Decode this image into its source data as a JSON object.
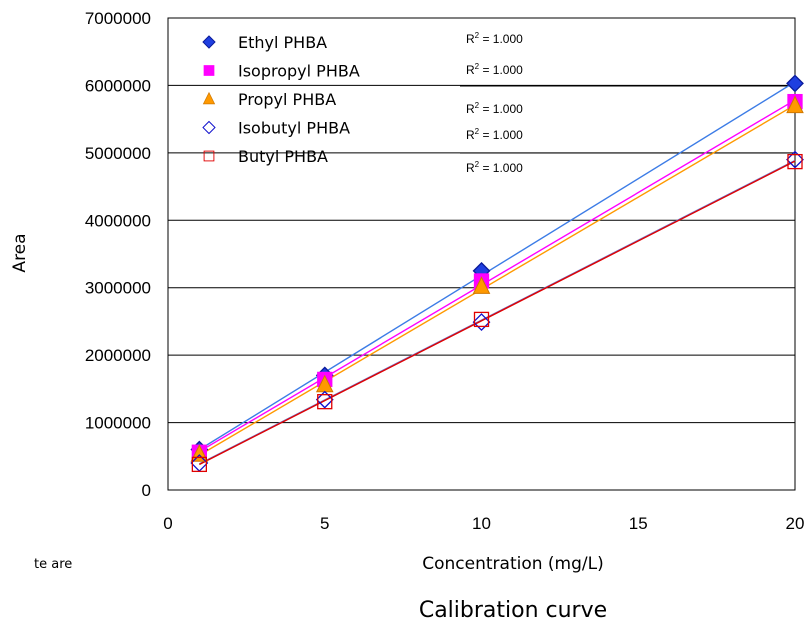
{
  "chart_data": {
    "type": "scatter",
    "title": "",
    "caption": "Calibration curve",
    "xlabel": "Concentration (mg/L)",
    "ylabel": "Area",
    "xlim": [
      0,
      20
    ],
    "ylim": [
      0,
      7000000
    ],
    "x_ticks": [
      0,
      5,
      10,
      15,
      20
    ],
    "y_ticks": [
      0,
      1000000,
      2000000,
      3000000,
      4000000,
      5000000,
      6000000,
      7000000
    ],
    "grid": "horizontal",
    "legend_placement": "top-left",
    "clipped_note": "te are",
    "series": [
      {
        "name": "Ethyl PHBA",
        "marker": "diamond-filled",
        "color": "#1f3fe0",
        "line_color": "#3c7ce6",
        "x": [
          1,
          5,
          10,
          20
        ],
        "y": [
          600000,
          1700000,
          3250000,
          6030000
        ],
        "r2": "R² = 1.000"
      },
      {
        "name": "Isopropyl PHBA",
        "marker": "square-filled",
        "color": "#ff00ff",
        "line_color": "#ff00ff",
        "x": [
          1,
          5,
          10,
          20
        ],
        "y": [
          560000,
          1640000,
          3100000,
          5760000
        ],
        "r2": "R² = 1.000"
      },
      {
        "name": "Propyl PHBA",
        "marker": "triangle-filled",
        "color": "#ff9900",
        "line_color": "#ff9900",
        "x": [
          1,
          5,
          10,
          20
        ],
        "y": [
          530000,
          1560000,
          3020000,
          5700000
        ],
        "r2": "R² = 1.000"
      },
      {
        "name": "Isobutyl PHBA",
        "marker": "diamond-open",
        "color": "#1010cc",
        "line_color": "#7070c0",
        "x": [
          1,
          5,
          10,
          20
        ],
        "y": [
          400000,
          1340000,
          2490000,
          4900000
        ],
        "r2": "R² = 1.000"
      },
      {
        "name": "Butyl PHBA",
        "marker": "square-open",
        "color": "#e00000",
        "line_color": "#e00000",
        "x": [
          1,
          5,
          10,
          20
        ],
        "y": [
          380000,
          1310000,
          2530000,
          4870000
        ],
        "r2": "R² = 1.000"
      }
    ]
  }
}
